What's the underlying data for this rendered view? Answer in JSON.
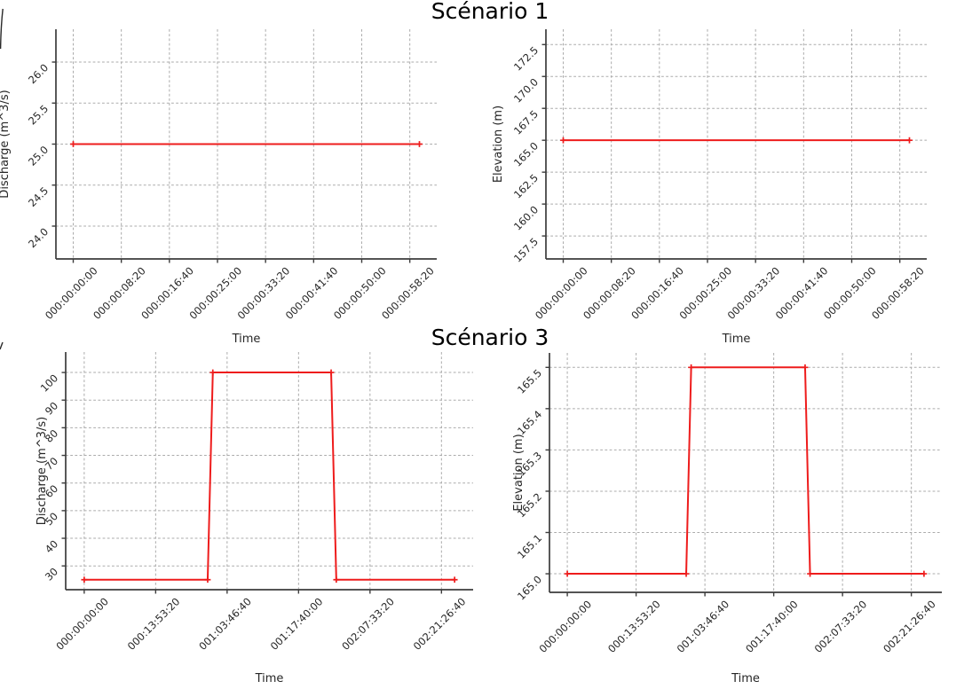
{
  "suptitles": [
    "Scénario 1",
    "Scénario 3"
  ],
  "colors": {
    "line": "#ee1c1c",
    "grid": "#ababab",
    "spine": "#3c3c3c",
    "tick_text": "#262626",
    "title_text": "#000000",
    "background": "#ffffff"
  },
  "chart_data": [
    {
      "type": "line",
      "panel": "top-left",
      "group_title": "Scénario 1",
      "xlabel": "Time",
      "ylabel": "Discharge (m^3/s)",
      "x": [
        0,
        3600
      ],
      "y": [
        25.0,
        25.0
      ],
      "xlim": [
        -180,
        3780
      ],
      "ylim": [
        23.6,
        26.4
      ],
      "xtick_values": [
        0,
        500,
        1000,
        1500,
        2000,
        2500,
        3000,
        3500
      ],
      "xtick_labels": [
        "000:00:00:00",
        "000:00:08:20",
        "000:00:16:40",
        "000:00:25:00",
        "000:00:33:20",
        "000:00:41:40",
        "000:00:50:00",
        "000:00:58:20"
      ],
      "ytick_values": [
        24.0,
        24.5,
        25.0,
        25.5,
        26.0
      ],
      "ytick_labels": [
        "24.0",
        "24.5",
        "25.0",
        "25.5",
        "26.0"
      ],
      "grid": true,
      "marker": "plus",
      "tick_rotation_deg": 45
    },
    {
      "type": "line",
      "panel": "top-right",
      "group_title": "Scénario 1",
      "xlabel": "Time",
      "ylabel": "Elevation (m)",
      "x": [
        0,
        3600
      ],
      "y": [
        165.0,
        165.0
      ],
      "xlim": [
        -180,
        3780
      ],
      "ylim": [
        155.7,
        173.7
      ],
      "xtick_values": [
        0,
        500,
        1000,
        1500,
        2000,
        2500,
        3000,
        3500
      ],
      "xtick_labels": [
        "000:00:00:00",
        "000:00:08:20",
        "000:00:16:40",
        "000:00:25:00",
        "000:00:33:20",
        "000:00:41:40",
        "000:00:50:00",
        "000:00:58:20"
      ],
      "ytick_values": [
        157.5,
        160.0,
        162.5,
        165.0,
        167.5,
        170.0,
        172.5
      ],
      "ytick_labels": [
        "157.5",
        "160.0",
        "162.5",
        "165.0",
        "167.5",
        "170.0",
        "172.5"
      ],
      "grid": true,
      "marker": "plus",
      "tick_rotation_deg": 45
    },
    {
      "type": "line",
      "panel": "bottom-left",
      "group_title": "Scénario 3",
      "xlabel": "Time",
      "ylabel": "Discharge (m^3/s)",
      "x": [
        0,
        86400,
        90000,
        172800,
        176400,
        259200
      ],
      "y": [
        25,
        25,
        100,
        100,
        25,
        25
      ],
      "xlim": [
        -12960,
        272160
      ],
      "ylim": [
        21.4,
        107.4
      ],
      "xtick_values": [
        0,
        50000,
        100000,
        150000,
        200000,
        250000
      ],
      "xtick_labels": [
        "000:00:00:00",
        "000:13:53:20",
        "001:03:46:40",
        "001:17:40:00",
        "002:07:33:20",
        "002:21:26:40"
      ],
      "ytick_values": [
        30,
        40,
        50,
        60,
        70,
        80,
        90,
        100
      ],
      "ytick_labels": [
        "30",
        "40",
        "50",
        "60",
        "70",
        "80",
        "90",
        "100"
      ],
      "grid": true,
      "marker": "plus",
      "tick_rotation_deg": 45
    },
    {
      "type": "line",
      "panel": "bottom-right",
      "group_title": "Scénario 3",
      "xlabel": "Time",
      "ylabel": "Elevation (m)",
      "x": [
        0,
        86400,
        90000,
        172800,
        176400,
        259200
      ],
      "y": [
        165.0,
        165.0,
        165.5,
        165.5,
        165.0,
        165.0
      ],
      "xlim": [
        -12960,
        272160
      ],
      "ylim": [
        164.955,
        165.535
      ],
      "xtick_values": [
        0,
        50000,
        100000,
        150000,
        200000,
        250000
      ],
      "xtick_labels": [
        "000:00:00:00",
        "000:13:53:20",
        "001:03:46:40",
        "001:17:40:00",
        "002:07:33:20",
        "002:21:26:40"
      ],
      "ytick_values": [
        165.0,
        165.1,
        165.2,
        165.3,
        165.4,
        165.5
      ],
      "ytick_labels": [
        "165.0",
        "165.1",
        "165.2",
        "165.3",
        "165.4",
        "165.5"
      ],
      "grid": true,
      "marker": "plus",
      "tick_rotation_deg": 45
    }
  ]
}
